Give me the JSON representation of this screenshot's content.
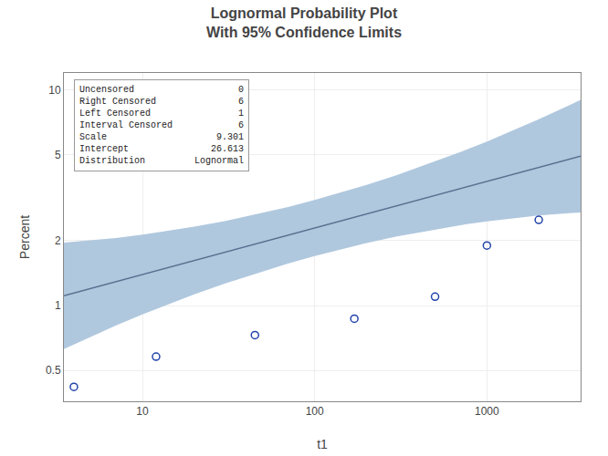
{
  "chart_data": {
    "type": "scatter",
    "title": "Lognormal Probability Plot",
    "subtitle": "With 95% Confidence Limits",
    "xlabel": "t1",
    "ylabel": "Percent",
    "log": true,
    "grid": true,
    "xlim": [
      3.5,
      3500
    ],
    "ylim": [
      0.36,
      12
    ],
    "xticks": [
      10,
      100,
      1000
    ],
    "yticks": [
      0.5,
      1,
      2,
      5,
      10
    ],
    "series": [
      {
        "type": "band",
        "color": "#b0c8de",
        "x": [
          3.5,
          5,
          7,
          10,
          20,
          30,
          50,
          70,
          100,
          200,
          300,
          500,
          700,
          1000,
          2000,
          3000,
          3500
        ],
        "upper": [
          1.9593,
          2.0048,
          2.0601,
          2.133,
          2.3222,
          2.4666,
          2.6913,
          2.8699,
          3.0903,
          3.6308,
          4.0326,
          4.6542,
          5.15,
          5.7676,
          7.3134,
          8.4922,
          9.0083
        ],
        "lower": [
          0.6294,
          0.7176,
          0.8076,
          0.9099,
          1.1276,
          1.2648,
          1.4454,
          1.5675,
          1.6982,
          1.95,
          2.0919,
          2.26,
          2.3619,
          2.4604,
          2.6177,
          2.6857,
          2.7064
        ]
      },
      {
        "type": "line",
        "color": "#5a7090",
        "x": [
          3.5,
          5,
          7,
          10,
          20,
          30,
          50,
          70,
          100,
          200,
          300,
          500,
          700,
          1000,
          2000,
          3000,
          3500
        ],
        "values": [
          1.1105,
          1.1994,
          1.2899,
          1.3932,
          1.6182,
          1.7663,
          1.9723,
          2.121,
          2.2909,
          2.6608,
          2.9044,
          3.2432,
          3.4877,
          3.767,
          4.3754,
          4.7759,
          4.9376
        ]
      },
      {
        "type": "scatter",
        "color": "#2244aa",
        "marker": "open circle",
        "x": [
          4,
          12,
          45,
          170,
          500,
          1000,
          2000
        ],
        "values": [
          0.42,
          0.58,
          0.73,
          0.87,
          1.1,
          1.9,
          2.5
        ]
      }
    ],
    "annotations": [
      [
        "Uncensored",
        "0"
      ],
      [
        "Right Censored",
        "6"
      ],
      [
        "Left Censored",
        "1"
      ],
      [
        "Interval Censored",
        "6"
      ],
      [
        "Scale",
        "9.301"
      ],
      [
        "Intercept",
        "26.613"
      ],
      [
        "Distribution",
        "Lognormal"
      ]
    ]
  }
}
